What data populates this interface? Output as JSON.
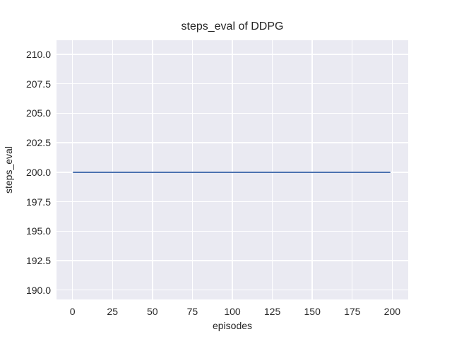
{
  "figure": {
    "background": "#ffffff",
    "text_color": "#262626"
  },
  "chart_data": {
    "type": "line",
    "title": "steps_eval of DDPG",
    "xlabel": "episodes",
    "ylabel": "steps_eval",
    "xlim": [
      -10,
      210
    ],
    "ylim": [
      189.2,
      211.2
    ],
    "x_tick_values": [
      0,
      25,
      50,
      75,
      100,
      125,
      150,
      175,
      200
    ],
    "x_tick_labels": [
      "0",
      "25",
      "50",
      "75",
      "100",
      "125",
      "150",
      "175",
      "200"
    ],
    "y_tick_values": [
      190.0,
      192.5,
      195.0,
      197.5,
      200.0,
      202.5,
      205.0,
      207.5,
      210.0
    ],
    "y_tick_labels": [
      "190.0",
      "192.5",
      "195.0",
      "197.5",
      "200.0",
      "202.5",
      "205.0",
      "207.5",
      "210.0"
    ],
    "grid": true,
    "grid_color": "#ffffff",
    "plot_background": "#eaeaf2",
    "legend": null,
    "series": [
      {
        "name": "DDPG steps_eval",
        "color": "#4c72b0",
        "x": [
          0,
          199
        ],
        "y": [
          200,
          200
        ],
        "description": "constant value 200 for every episode 0 through 199"
      }
    ]
  }
}
